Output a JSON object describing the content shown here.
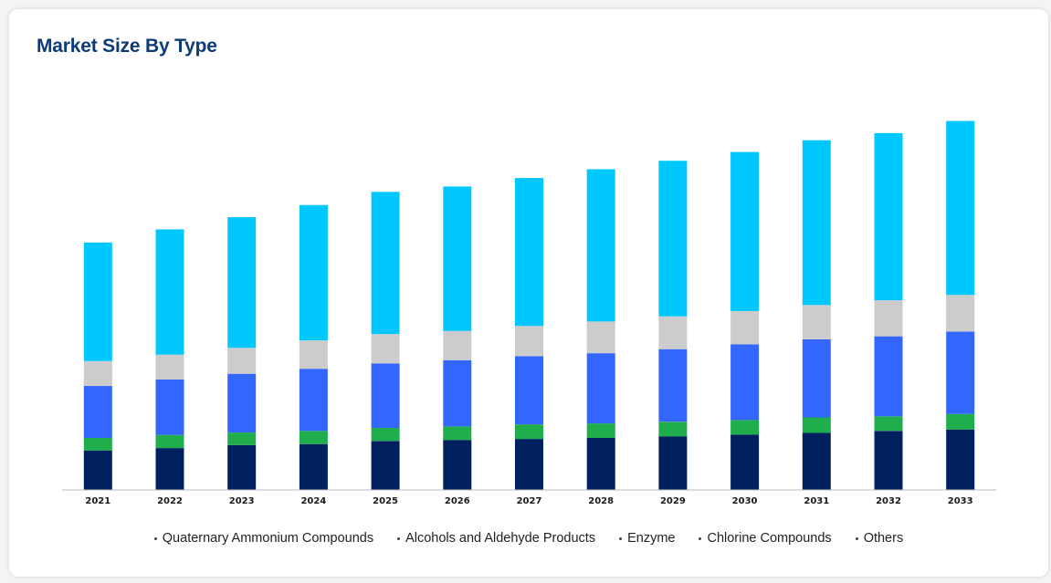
{
  "card": {
    "title": "Market Size By Type"
  },
  "colors": {
    "quaternary": "#002060",
    "alcohols": "#1fae4b",
    "enzyme": "#3366ff",
    "chlorine": "#cccccc",
    "others": "#00c8ff",
    "title": "#0d3b78"
  },
  "chart_data": {
    "type": "bar",
    "stacked": true,
    "title": "Market Size By Type",
    "xlabel": "",
    "ylabel": "",
    "ylim": [
      0,
      110
    ],
    "grid": false,
    "legend_position": "bottom",
    "categories": [
      "2021",
      "2022",
      "2023",
      "2024",
      "2025",
      "2026",
      "2027",
      "2028",
      "2029",
      "2030",
      "2031",
      "2032",
      "2033"
    ],
    "series": [
      {
        "name": "Quaternary Ammonium Compounds",
        "color_key": "quaternary",
        "values": [
          11.7,
          12.4,
          13.3,
          13.6,
          14.5,
          14.8,
          15.1,
          15.4,
          15.9,
          16.4,
          16.9,
          17.5,
          17.9
        ]
      },
      {
        "name": "Alcohols and Aldehyde Products",
        "color_key": "alcohols",
        "values": [
          3.7,
          3.9,
          3.7,
          3.9,
          3.9,
          4.0,
          4.3,
          4.3,
          4.3,
          4.3,
          4.6,
          4.3,
          4.6
        ]
      },
      {
        "name": "Enzyme",
        "color_key": "enzyme",
        "values": [
          15.4,
          16.4,
          17.4,
          18.4,
          19.1,
          19.6,
          20.2,
          20.8,
          21.5,
          22.4,
          23.1,
          23.7,
          24.4
        ]
      },
      {
        "name": "Chlorine Compounds",
        "color_key": "chlorine",
        "values": [
          7.4,
          7.4,
          7.7,
          8.4,
          8.7,
          8.7,
          9.0,
          9.4,
          9.7,
          9.9,
          10.2,
          10.7,
          10.9
        ]
      },
      {
        "name": "Others",
        "color_key": "others",
        "values": [
          35.1,
          37.1,
          38.7,
          40.1,
          42.1,
          42.8,
          43.8,
          45.1,
          46.1,
          47.1,
          48.8,
          49.5,
          51.5
        ]
      }
    ]
  }
}
